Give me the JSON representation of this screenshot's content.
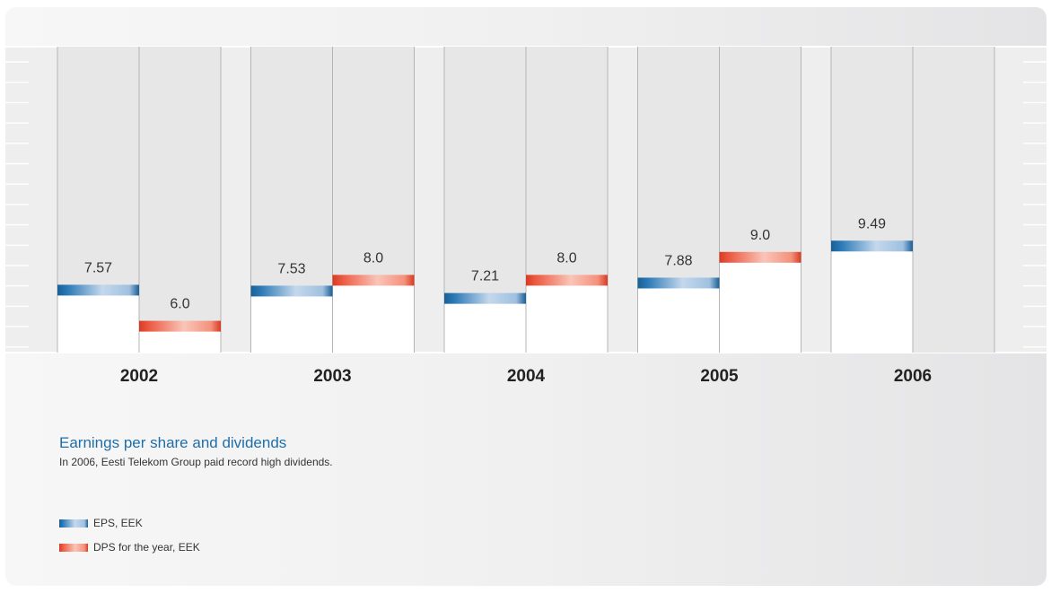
{
  "chart_data": {
    "type": "bar",
    "categories": [
      "2002",
      "2003",
      "2004",
      "2005",
      "2006"
    ],
    "series": [
      {
        "name": "EPS, EEK",
        "values": [
          7.57,
          7.53,
          7.21,
          7.88,
          9.49
        ],
        "color": "#1f6ea8"
      },
      {
        "name": "DPS for the year, EEK",
        "values": [
          6.0,
          8.0,
          8.0,
          9.0,
          null
        ],
        "color": "#e8412e"
      }
    ],
    "value_labels": [
      [
        "7.57",
        "7.53",
        "7.21",
        "7.88",
        "9.49"
      ],
      [
        "6.0",
        "8.0",
        "8.0",
        "9.0",
        ""
      ]
    ],
    "title": "Earnings per share and dividends",
    "subtitle": "In 2006, Eesti Telekom Group paid record high dividends.",
    "grid": false,
    "legend_position": "bottom-left"
  }
}
